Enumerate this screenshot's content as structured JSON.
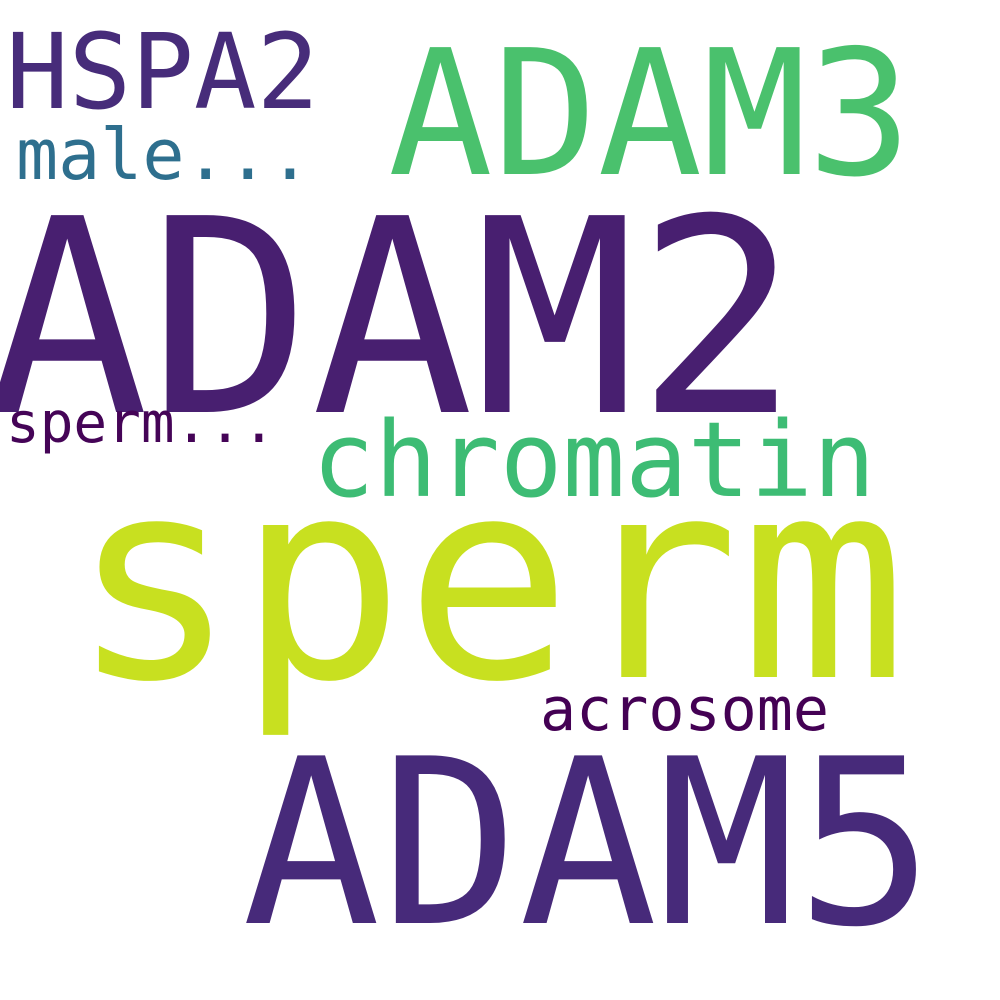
{
  "words": [
    {
      "text": "HSPA2",
      "color": "#472c7a"
    },
    {
      "text": "ADAM3",
      "color": "#4ac16d"
    },
    {
      "text": "male...",
      "color": "#2e6f8e"
    },
    {
      "text": "ADAM2",
      "color": "#481f70"
    },
    {
      "text": "sperm...",
      "color": "#450457"
    },
    {
      "text": "chromatin",
      "color": "#3dbc74"
    },
    {
      "text": "sperm",
      "color": "#c8e020"
    },
    {
      "text": "acrosome",
      "color": "#440154"
    },
    {
      "text": "ADAM5",
      "color": "#472a7a"
    }
  ]
}
